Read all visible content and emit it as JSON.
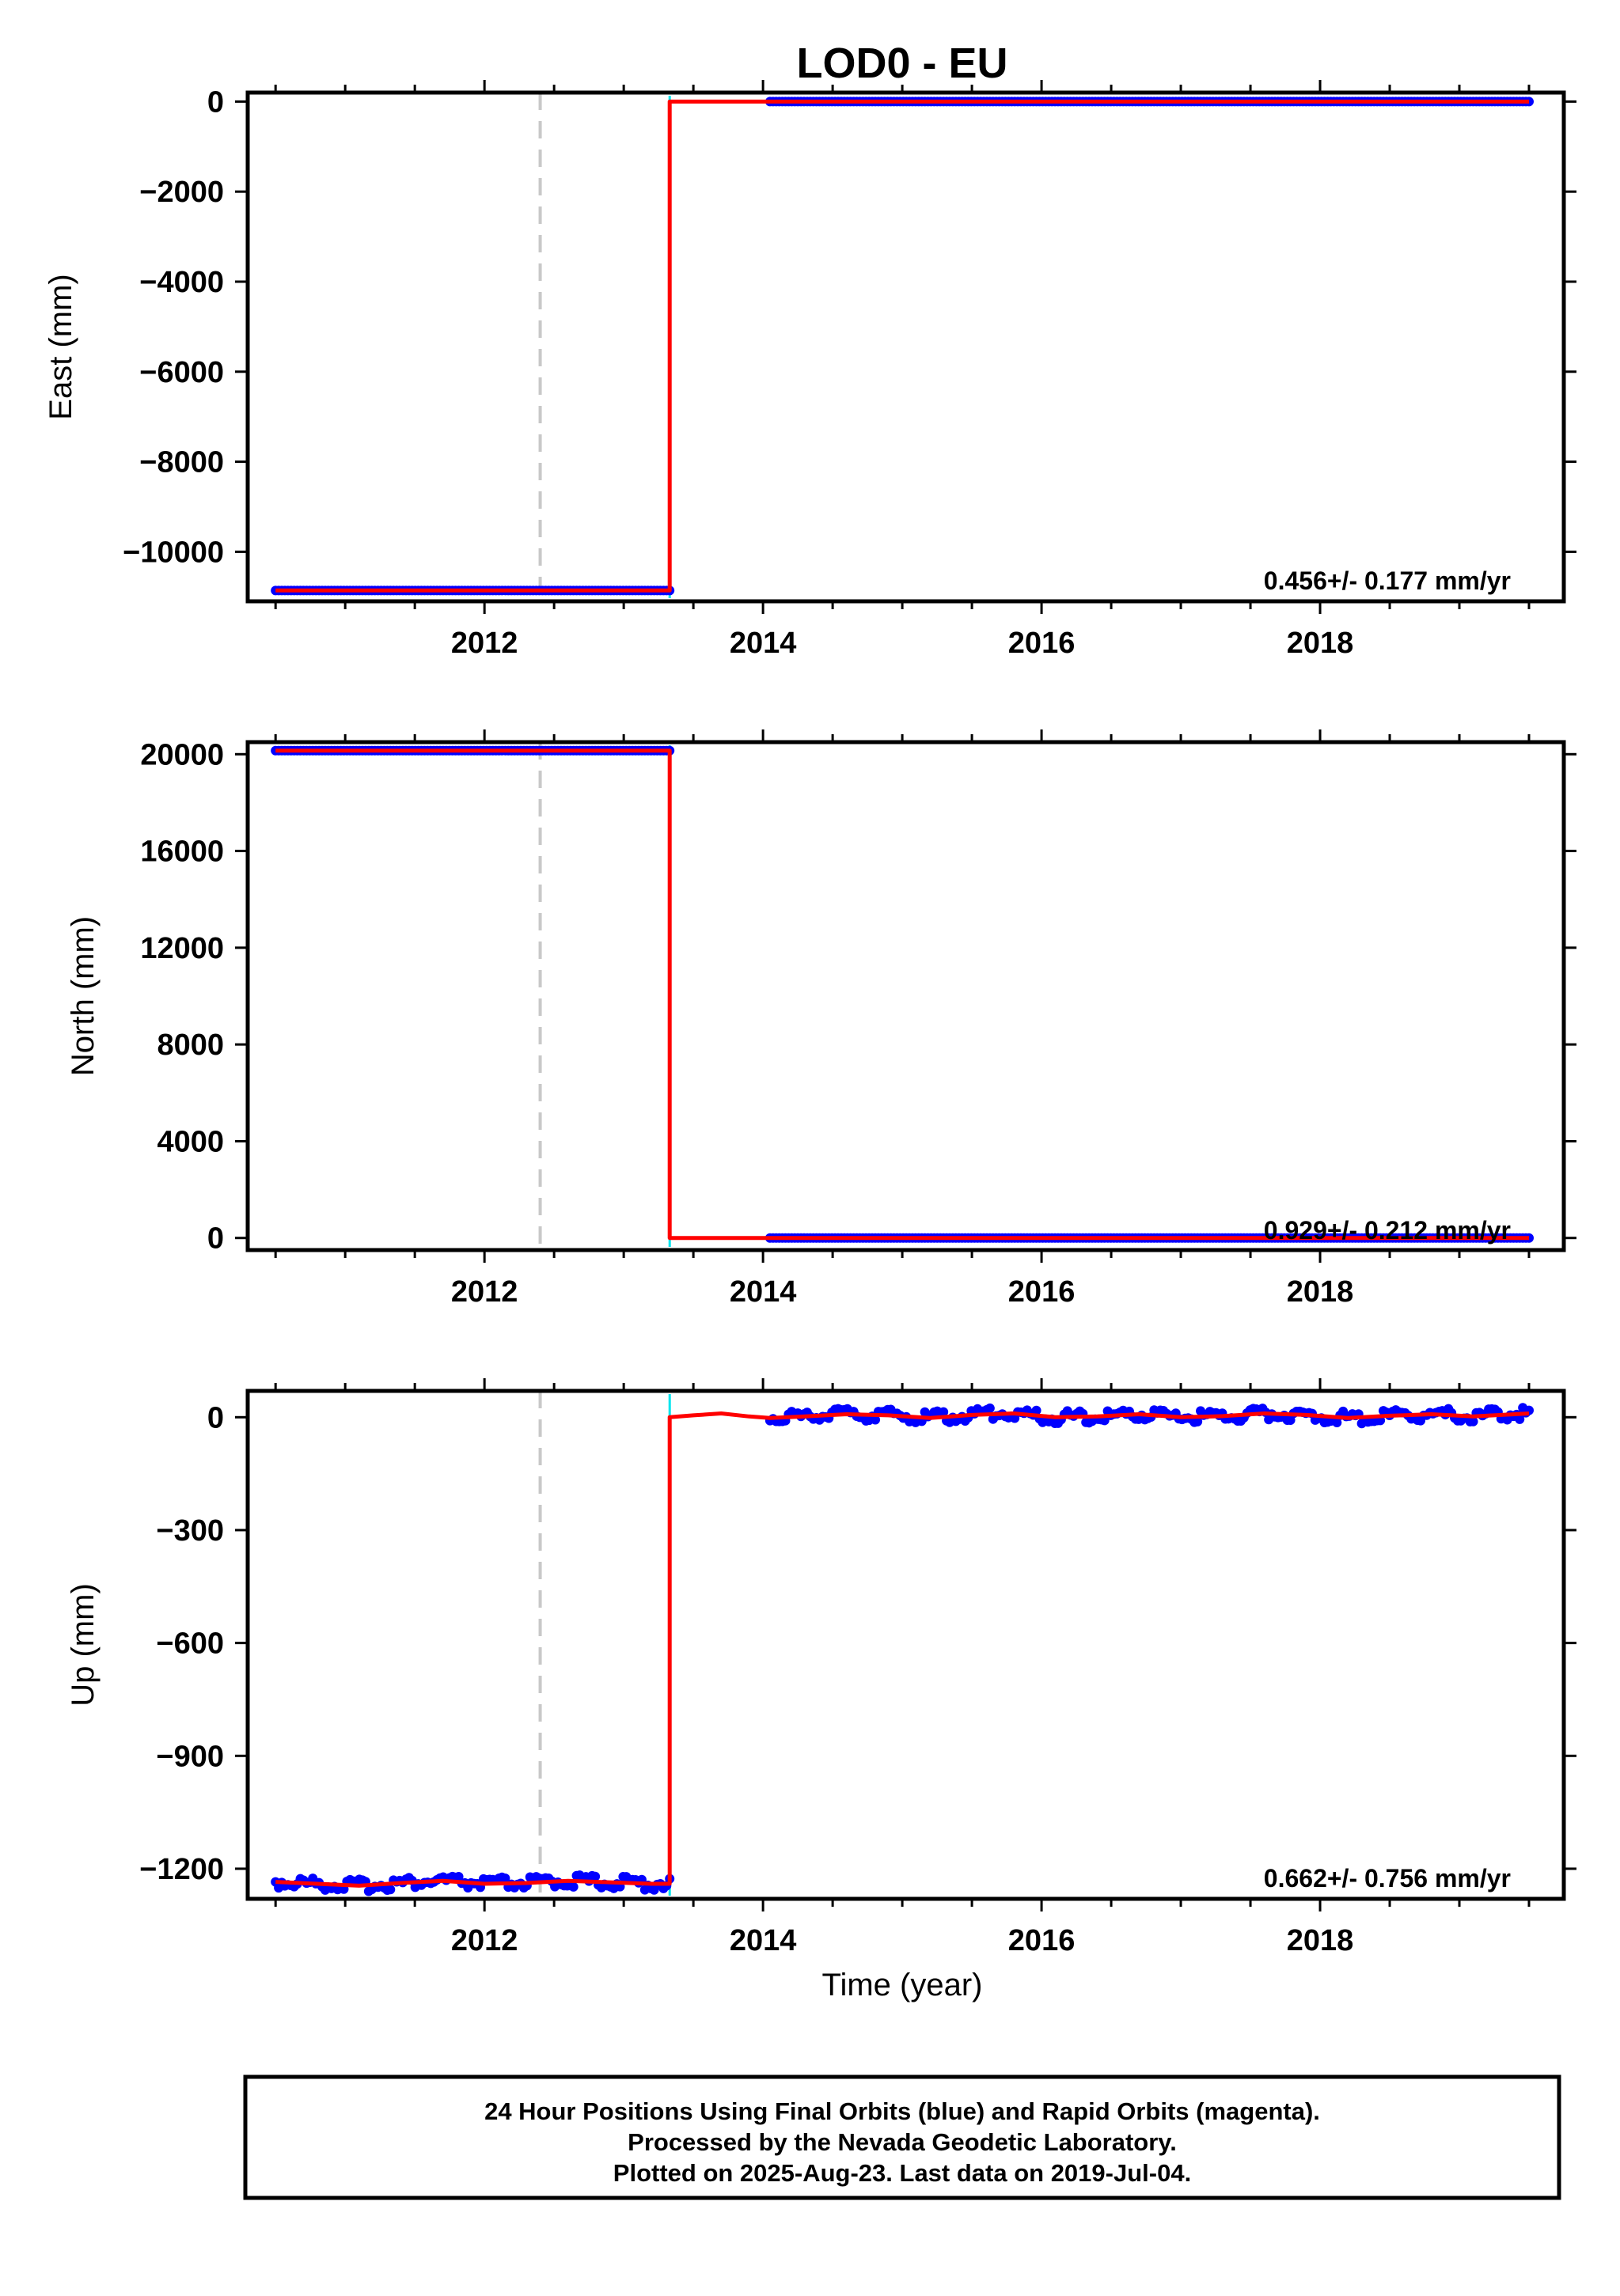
{
  "colors": {
    "final": "#0000ff",
    "rapid": "#ff00ff",
    "model": "#ff0000",
    "offset": "#00e5ee",
    "equipment": "#c8c8c8",
    "frame": "#000000"
  },
  "chart_data": [
    {
      "type": "scatter",
      "title": "LOD0 - EU",
      "ylabel": "East (mm)",
      "xlabel": "",
      "xlim": [
        2010.3,
        2019.75
      ],
      "ylim": [
        -11100,
        200
      ],
      "xticks": [
        2012,
        2014,
        2016,
        2018
      ],
      "yticks": [
        0,
        -2000,
        -4000,
        -6000,
        -8000,
        -10000
      ],
      "ytick_labels": [
        "0",
        "−2000",
        "−4000",
        "−6000",
        "−8000",
        "−10000"
      ],
      "rate": "0.456+/- 0.177 mm/yr",
      "equipment_change_epoch": 2012.4,
      "offset_epoch": 2013.33,
      "series": [
        {
          "role": "final",
          "segments": [
            {
              "x": [
                2010.5,
                2013.33
              ],
              "y": [
                -10860,
                -10860
              ]
            },
            {
              "x": [
                2014.05,
                2019.5
              ],
              "y": [
                0,
                0
              ]
            }
          ]
        },
        {
          "role": "model",
          "segments": [
            {
              "x": [
                2010.5,
                2013.33,
                2013.33,
                2019.5
              ],
              "y": [
                -10860,
                -10860,
                0,
                0
              ]
            }
          ]
        }
      ]
    },
    {
      "type": "scatter",
      "title": "",
      "ylabel": "North (mm)",
      "xlabel": "",
      "xlim": [
        2010.3,
        2019.75
      ],
      "ylim": [
        -500,
        20500
      ],
      "xticks": [
        2012,
        2014,
        2016,
        2018
      ],
      "yticks": [
        20000,
        16000,
        12000,
        8000,
        4000,
        0
      ],
      "ytick_labels": [
        "20000",
        "16000",
        "12000",
        "8000",
        "4000",
        "0"
      ],
      "rate": "0.929+/- 0.212 mm/yr",
      "equipment_change_epoch": 2012.4,
      "offset_epoch": 2013.33,
      "series": [
        {
          "role": "final",
          "segments": [
            {
              "x": [
                2010.5,
                2013.33
              ],
              "y": [
                20150,
                20150
              ]
            },
            {
              "x": [
                2014.05,
                2019.5
              ],
              "y": [
                0,
                0
              ]
            }
          ]
        },
        {
          "role": "model",
          "segments": [
            {
              "x": [
                2010.5,
                2013.33,
                2013.33,
                2019.5
              ],
              "y": [
                20150,
                20150,
                0,
                0
              ]
            }
          ]
        }
      ]
    },
    {
      "type": "scatter",
      "title": "",
      "ylabel": "Up (mm)",
      "xlabel": "Time (year)",
      "xlim": [
        2010.3,
        2019.75
      ],
      "ylim": [
        -1280,
        70
      ],
      "xticks": [
        2012,
        2014,
        2016,
        2018
      ],
      "yticks": [
        0,
        -300,
        -600,
        -900,
        -1200
      ],
      "ytick_labels": [
        "0",
        "−300",
        "−600",
        "−900",
        "−1200"
      ],
      "rate": "0.662+/- 0.756 mm/yr",
      "equipment_change_epoch": 2012.4,
      "offset_epoch": 2013.33,
      "series": [
        {
          "role": "final",
          "segments": [
            {
              "x": [
                2010.5,
                2010.8,
                2011.1,
                2011.4,
                2011.7,
                2012.0,
                2012.3,
                2012.6,
                2012.9,
                2013.2,
                2013.33
              ],
              "y": [
                -1235,
                -1240,
                -1245,
                -1238,
                -1232,
                -1240,
                -1238,
                -1232,
                -1236,
                -1240,
                -1240
              ]
            },
            {
              "x": [
                2014.05,
                2014.3,
                2014.6,
                2014.9,
                2015.2,
                2015.5,
                2015.8,
                2016.1,
                2016.4,
                2016.7,
                2017.0,
                2017.3,
                2017.6,
                2017.9,
                2018.2,
                2018.5,
                2018.8,
                2019.1,
                2019.5
              ],
              "y": [
                0,
                2,
                8,
                5,
                -2,
                6,
                10,
                0,
                2,
                8,
                0,
                3,
                10,
                6,
                -2,
                4,
                8,
                2,
                12
              ]
            }
          ]
        },
        {
          "role": "model",
          "segments": [
            {
              "x": [
                2010.5,
                2010.8,
                2011.1,
                2011.4,
                2011.7,
                2012.0,
                2012.3,
                2012.6,
                2012.9,
                2013.2,
                2013.33,
                2013.33,
                2013.5,
                2013.7,
                2013.9,
                2014.05,
                2014.3,
                2014.6,
                2014.9,
                2015.2,
                2015.5,
                2015.8,
                2016.1,
                2016.4,
                2016.7,
                2017.0,
                2017.3,
                2017.6,
                2017.9,
                2018.2,
                2018.5,
                2018.8,
                2019.1,
                2019.5
              ],
              "y": [
                -1235,
                -1240,
                -1245,
                -1238,
                -1232,
                -1240,
                -1238,
                -1232,
                -1236,
                -1240,
                -1240,
                0,
                5,
                10,
                2,
                -2,
                2,
                8,
                5,
                -2,
                6,
                10,
                0,
                2,
                8,
                0,
                3,
                10,
                6,
                -2,
                4,
                8,
                2,
                10
              ]
            }
          ]
        }
      ]
    }
  ],
  "footer": {
    "line1": "24 Hour Positions Using Final Orbits (blue) and Rapid Orbits (magenta).",
    "line2": "Processed by the Nevada Geodetic Laboratory.",
    "line3": "Plotted on 2025-Aug-23. Last data on 2019-Jul-04."
  }
}
